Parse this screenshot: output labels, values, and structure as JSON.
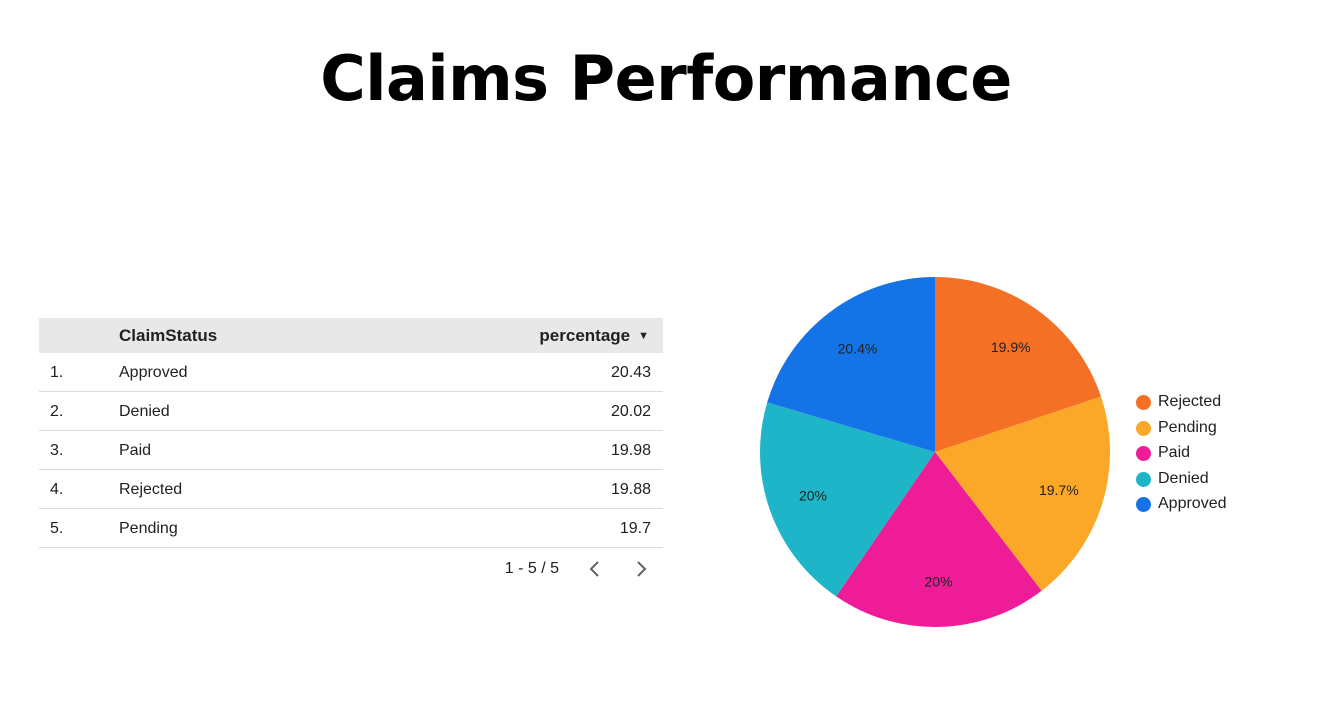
{
  "title": "Claims Performance",
  "table": {
    "headers": {
      "status": "ClaimStatus",
      "percentage": "percentage"
    },
    "rows": [
      {
        "num": "1.",
        "status": "Approved",
        "value": "20.43"
      },
      {
        "num": "2.",
        "status": "Denied",
        "value": "20.02"
      },
      {
        "num": "3.",
        "status": "Paid",
        "value": "19.98"
      },
      {
        "num": "4.",
        "status": "Rejected",
        "value": "19.88"
      },
      {
        "num": "5.",
        "status": "Pending",
        "value": "19.7"
      }
    ],
    "pagination": "1 - 5 / 5",
    "sort_icon": "sort-descending-icon"
  },
  "chart_data": {
    "type": "pie",
    "categories": [
      "Rejected",
      "Pending",
      "Paid",
      "Denied",
      "Approved"
    ],
    "values": [
      19.88,
      19.7,
      19.98,
      20.02,
      20.43
    ],
    "labels": [
      "19.9%",
      "19.7%",
      "20%",
      "20%",
      "20.4%"
    ],
    "colors": [
      "#f47024",
      "#fba829",
      "#ee1c96",
      "#1fb5c9",
      "#1473e6"
    ],
    "legend_position": "right"
  }
}
